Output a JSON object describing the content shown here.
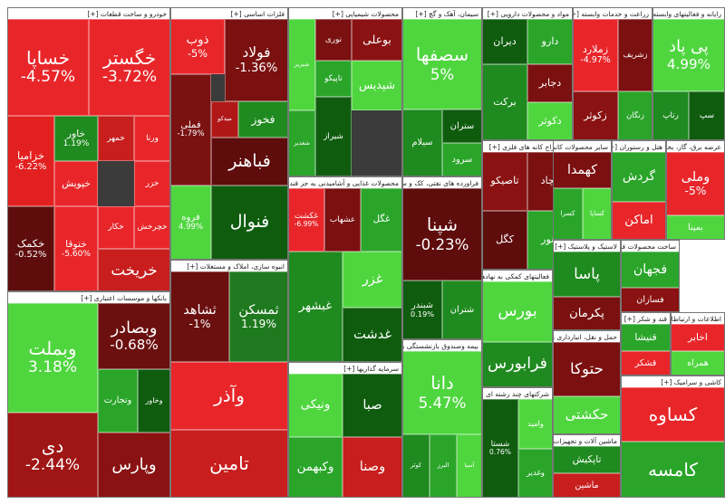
{
  "chart_data": {
    "type": "treemap",
    "groups": [
      {
        "name": "خودرو و ساخت قطعات [+]",
        "tiles": [
          {
            "name": "خساپا",
            "color": "#e8262a",
            "value": -4.57,
            "value_label": "-4.57%"
          },
          {
            "name": "خگستر",
            "color": "#e8262a",
            "value": -3.72,
            "value_label": "-3.72%"
          },
          {
            "name": "خزامیا",
            "color": "#e32020",
            "value": -6.22,
            "value_label": "-6.22%"
          },
          {
            "name": "خاور",
            "color": "#1f8a1f",
            "value": 1.19,
            "value_label": "1.19%"
          },
          {
            "name": "خپویش",
            "color": "#e8262a"
          },
          {
            "name": "ورنا",
            "color": "#e8262a"
          },
          {
            "name": "خمهر",
            "color": "#c81e1e"
          },
          {
            "name": "خزر",
            "color": "#e8262a"
          },
          {
            "name": "خکمک",
            "color": "#5e0c0c",
            "value": -0.52,
            "value_label": "-0.52%"
          },
          {
            "name": "ختوقا",
            "color": "#e8262a",
            "value": -5.6,
            "value_label": "-5.60%"
          },
          {
            "name": "خکار",
            "color": "#e8262a"
          },
          {
            "name": "خچرخش",
            "color": "#e8262a"
          },
          {
            "name": "خریخت",
            "color": "#c81e1e"
          }
        ]
      },
      {
        "name": "بانکها و موسسات اعتباری [+]",
        "tiles": [
          {
            "name": "وبملت",
            "color": "#4fd63f",
            "value": 3.18,
            "value_label": "3.18%"
          },
          {
            "name": "دی",
            "color": "#a01515",
            "value": -2.44,
            "value_label": "-2.44%"
          },
          {
            "name": "وبصادر",
            "color": "#6b0f0f",
            "value": -0.68,
            "value_label": "-0.68%"
          },
          {
            "name": "وتجارت",
            "color": "#2aa52a"
          },
          {
            "name": "وخاور",
            "color": "#0f5c0f"
          },
          {
            "name": "وپارس",
            "color": "#8a1212"
          }
        ]
      },
      {
        "name": "فلزات اساسی [+]",
        "tiles": [
          {
            "name": "ذوب",
            "color": "#e8262a",
            "value": -5,
            "value_label": "-5%"
          },
          {
            "name": "فولاد",
            "color": "#7a1010",
            "value": -1.36,
            "value_label": "-1.36%"
          },
          {
            "name": "فملی",
            "color": "#7a1212",
            "value": -1.79,
            "value_label": "-1.79%"
          },
          {
            "name": "میدکو",
            "color": "#b01818"
          },
          {
            "name": "فخوز",
            "color": "#1f8a1f"
          },
          {
            "name": "فباهنر",
            "color": "#5e0c0c"
          },
          {
            "name": "فروه",
            "color": "#4fd63f",
            "value": 4.99,
            "value_label": "4.99%"
          },
          {
            "name": "فنوال",
            "color": "#0f5c0f"
          }
        ]
      },
      {
        "name": "انبوه سازی، املاک و مستغلات [+]",
        "tiles": [
          {
            "name": "ثشاهد",
            "color": "#6b0f0f",
            "value": -1,
            "value_label": "-1%"
          },
          {
            "name": "ثمسکن",
            "color": "#1f7a1f",
            "value": 1.19,
            "value_label": "1.19%"
          },
          {
            "name": "وآذر",
            "color": "#e8262a"
          },
          {
            "name": "تامین",
            "color": "#c81e1e"
          }
        ]
      },
      {
        "name": "محصولات شیمیایی [+]",
        "tiles": [
          {
            "name": "شبریز",
            "color": "#4fd63f"
          },
          {
            "name": "نوری",
            "color": "#7a1010"
          },
          {
            "name": "بوعلی",
            "color": "#8a1212"
          },
          {
            "name": "تاپیکو",
            "color": "#2aa52a"
          },
          {
            "name": "شپدیس",
            "color": "#4fd63f"
          },
          {
            "name": "شیراز",
            "color": "#0f5c0f"
          },
          {
            "name": "شغدیر",
            "color": "#2aa52a"
          }
        ]
      },
      {
        "name": "محصولات غذایی و آشامیدنی به جز قند و شکر [+]",
        "tiles": [
          {
            "name": "غکشت",
            "color": "#e8262a",
            "value": -6.99,
            "value_label": "-6.99%"
          },
          {
            "name": "عشهاب",
            "color": "#7a1010"
          },
          {
            "name": "غگل",
            "color": "#2aa52a"
          },
          {
            "name": "غبشهر",
            "color": "#1f8a1f"
          },
          {
            "name": "غزر",
            "color": "#4fd63f"
          },
          {
            "name": "غدشت",
            "color": "#0f5c0f"
          }
        ]
      },
      {
        "name": "سرمایه گذاریها [+]",
        "tiles": [
          {
            "name": "ونیکی",
            "color": "#4fd63f"
          },
          {
            "name": "صبا",
            "color": "#0f5c0f"
          },
          {
            "name": "وکبهمن",
            "color": "#2aa52a"
          },
          {
            "name": "وصنا",
            "color": "#c81e1e"
          }
        ]
      },
      {
        "name": "سیمان، آهک و گچ [+]",
        "tiles": [
          {
            "name": "سصفها",
            "color": "#4fd63f",
            "value": 5,
            "value_label": "5%"
          },
          {
            "name": "سیلام",
            "color": "#1f8a1f"
          },
          {
            "name": "ستران",
            "color": "#0f5c0f"
          },
          {
            "name": "سرود",
            "color": "#2aa52a"
          }
        ]
      },
      {
        "name": "فراورده های نفتی، کک و سوخت هسته ای [+]",
        "tiles": [
          {
            "name": "شپنا",
            "color": "#5e0c0c",
            "value": -0.23,
            "value_label": "-0.23%"
          },
          {
            "name": "شبندر",
            "color": "#0f5c0f",
            "value": 0.19,
            "value_label": "0.19%"
          },
          {
            "name": "شتران",
            "color": "#1f8a1f"
          }
        ]
      },
      {
        "name": "بیمه وصندوق بازنشستگی به جز تامین [+]",
        "tiles": [
          {
            "name": "دانا",
            "color": "#4fd63f",
            "value": 5.47,
            "value_label": "5.47%"
          },
          {
            "name": "کوثر",
            "color": "#1f8a1f"
          },
          {
            "name": "البرز",
            "color": "#2aa52a"
          },
          {
            "name": "آسیا",
            "color": "#4fd63f"
          }
        ]
      },
      {
        "name": "مواد و محصولات دارویی [+]",
        "tiles": [
          {
            "name": "دیران",
            "color": "#0f5c0f"
          },
          {
            "name": "دارو",
            "color": "#2aa52a"
          },
          {
            "name": "برکت",
            "color": "#1f8a1f"
          },
          {
            "name": "دجابر",
            "color": "#7a1010"
          },
          {
            "name": "دکوثر",
            "color": "#4fd63f"
          }
        ]
      },
      {
        "name": "استخراج کانه های فلزی [+]",
        "tiles": [
          {
            "name": "تاصیکو",
            "color": "#8a1212"
          },
          {
            "name": "کچاد",
            "color": "#7a1010"
          },
          {
            "name": "کگل",
            "color": "#5e0c0c"
          },
          {
            "name": "کنور",
            "color": "#2aa52a"
          }
        ]
      },
      {
        "name": "فعالیتهای کمکی به نهادهای مالی [+]",
        "tiles": [
          {
            "name": "بورس",
            "color": "#4fd63f"
          },
          {
            "name": "فرابورس",
            "color": "#1f8a1f"
          }
        ]
      },
      {
        "name": "شرکتهای چند رشته ای صنعتی [+]",
        "tiles": [
          {
            "name": "شستا",
            "color": "#0f5c0f",
            "value": 0.76,
            "value_label": "0.76%"
          },
          {
            "name": "وامید",
            "color": "#4fd63f"
          },
          {
            "name": "وغدیر",
            "color": "#2aa52a"
          }
        ]
      },
      {
        "name": "زراعت و خدمات وابسته [+]",
        "tiles": [
          {
            "name": "زملارد",
            "color": "#e8262a",
            "value": -4.97,
            "value_label": "-4.97%"
          },
          {
            "name": "زشریف",
            "color": "#7a1010"
          },
          {
            "name": "زکوثر",
            "color": "#8a1212"
          },
          {
            "name": "زنگان",
            "color": "#2aa52a"
          }
        ]
      },
      {
        "name": "رایانه و فعالیتهای وابسته به آن [+]",
        "tiles": [
          {
            "name": "پی پاد",
            "color": "#4fd63f",
            "value": 4.99,
            "value_label": "4.99%"
          },
          {
            "name": "رتاپ",
            "color": "#1f8a1f"
          },
          {
            "name": "سپ",
            "color": "#0f5c0f"
          }
        ]
      },
      {
        "name": "سایر محصولات کانی غیرفلزی [+]",
        "tiles": [
          {
            "name": "کهمدا",
            "color": "#7a1010"
          },
          {
            "name": "کسرا",
            "color": "#2aa52a"
          },
          {
            "name": "کساپا",
            "color": "#4fd63f"
          }
        ]
      },
      {
        "name": "هتل و رستوران [+]",
        "tiles": [
          {
            "name": "گردش",
            "color": "#2aa52a"
          },
          {
            "name": "اماکن",
            "color": "#e8262a"
          }
        ]
      },
      {
        "name": "عرضه برق، گاز، بخار و آب گرم [+]",
        "tiles": [
          {
            "name": "وملی",
            "color": "#e8262a",
            "value": -5,
            "value_label": "-5%"
          },
          {
            "name": "بمپنا",
            "color": "#4fd63f"
          }
        ]
      },
      {
        "name": "لاستیک و پلاستیک [+]",
        "tiles": [
          {
            "name": "پاسا",
            "color": "#1f8a1f"
          },
          {
            "name": "پکرمان",
            "color": "#7a1010"
          }
        ]
      },
      {
        "name": "ساخت محصولات فلزی [+]",
        "tiles": [
          {
            "name": "فجهان",
            "color": "#2aa52a"
          },
          {
            "name": "فسازان",
            "color": "#8a1212"
          }
        ]
      },
      {
        "name": "حمل و نقل، انبارداری و ارتباطات [+]",
        "tiles": [
          {
            "name": "حتوکا",
            "color": "#7a1010"
          },
          {
            "name": "حکشتی",
            "color": "#4fd63f"
          }
        ]
      },
      {
        "name": "قند و شکر [+]",
        "tiles": [
          {
            "name": "قنیشا",
            "color": "#2aa52a"
          },
          {
            "name": "قشکر",
            "color": "#e8262a"
          }
        ]
      },
      {
        "name": "اطلاعات و ارتباطات [+]",
        "tiles": [
          {
            "name": "اخابر",
            "color": "#e8262a"
          },
          {
            "name": "همراه",
            "color": "#4fd63f"
          }
        ]
      },
      {
        "name": "ماشین آلات و تجهیزات [+]",
        "tiles": [
          {
            "name": "تاپکیش",
            "color": "#1f8a1f"
          },
          {
            "name": "ماشین",
            "color": "#c81e1e"
          }
        ]
      },
      {
        "name": "کاشی و سرامیک [+]",
        "tiles": [
          {
            "name": "کساوه",
            "color": "#e8262a"
          },
          {
            "name": "کامسه",
            "color": "#2aa52a"
          }
        ]
      }
    ]
  }
}
